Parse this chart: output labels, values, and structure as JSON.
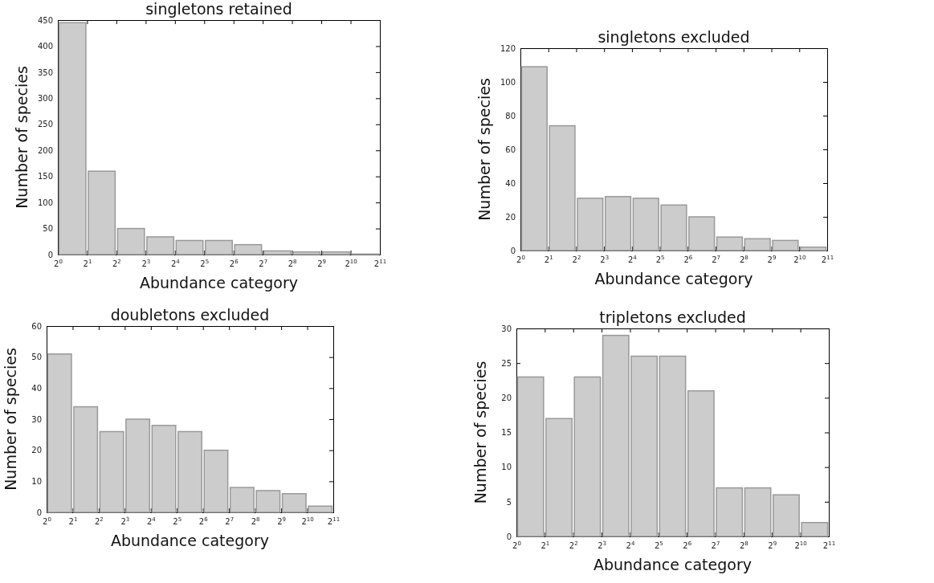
{
  "chart_data": [
    {
      "type": "histogram",
      "title": "singletons retained",
      "xlabel": "Abundance category",
      "ylabel": "Number of species",
      "log": "x",
      "color": "#cccccc",
      "grid": false,
      "bins": [
        1,
        2,
        4,
        8,
        16,
        32,
        64,
        128,
        256,
        512,
        1024,
        2048
      ],
      "values": [
        445,
        160,
        50,
        34,
        27,
        27,
        19,
        7,
        5,
        5,
        1
      ],
      "xlim": [
        1,
        2048
      ],
      "ylim": [
        0,
        450
      ],
      "xticks": [
        {
          "value": 1,
          "label": "2$^{0}$"
        },
        {
          "value": 2,
          "label": "2$^{1}$"
        },
        {
          "value": 4,
          "label": "2$^{2}$"
        },
        {
          "value": 8,
          "label": "2$^{3}$"
        },
        {
          "value": 16,
          "label": "2$^{4}$"
        },
        {
          "value": 32,
          "label": "2$^{5}$"
        },
        {
          "value": 64,
          "label": "2$^{6}$"
        },
        {
          "value": 128,
          "label": "2$^{7}$"
        },
        {
          "value": 256,
          "label": "2$^{8}$"
        },
        {
          "value": 512,
          "label": "2$^{9}$"
        },
        {
          "value": 1024,
          "label": "2$^{10}$"
        },
        {
          "value": 2048,
          "label": "2$^{11}$"
        }
      ],
      "yticks": [
        0,
        50,
        100,
        150,
        200,
        250,
        300,
        350,
        400,
        450
      ]
    },
    {
      "type": "histogram",
      "title": "singletons excluded",
      "xlabel": "Abundance category",
      "ylabel": "Number of species",
      "log": "x",
      "color": "#cccccc",
      "grid": false,
      "bins": [
        1,
        2,
        4,
        8,
        16,
        32,
        64,
        128,
        256,
        512,
        1024,
        2048
      ],
      "values": [
        109,
        74,
        31,
        32,
        31,
        27,
        20,
        8,
        7,
        6,
        2
      ],
      "xlim": [
        1,
        2048
      ],
      "ylim": [
        0,
        120
      ],
      "xticks": [
        {
          "value": 1,
          "label": "2$^{0}$"
        },
        {
          "value": 2,
          "label": "2$^{1}$"
        },
        {
          "value": 4,
          "label": "2$^{2}$"
        },
        {
          "value": 8,
          "label": "2$^{3}$"
        },
        {
          "value": 16,
          "label": "2$^{4}$"
        },
        {
          "value": 32,
          "label": "2$^{5}$"
        },
        {
          "value": 64,
          "label": "2$^{6}$"
        },
        {
          "value": 128,
          "label": "2$^{7}$"
        },
        {
          "value": 256,
          "label": "2$^{8}$"
        },
        {
          "value": 512,
          "label": "2$^{9}$"
        },
        {
          "value": 1024,
          "label": "2$^{10}$"
        },
        {
          "value": 2048,
          "label": "2$^{11}$"
        }
      ],
      "yticks": [
        0,
        20,
        40,
        60,
        80,
        100,
        120
      ]
    },
    {
      "type": "histogram",
      "title": "doubletons excluded",
      "xlabel": "Abundance category",
      "ylabel": "Number of species",
      "log": "x",
      "color": "#cccccc",
      "grid": false,
      "bins": [
        1,
        2,
        4,
        8,
        16,
        32,
        64,
        128,
        256,
        512,
        1024,
        2048
      ],
      "values": [
        51,
        34,
        26,
        30,
        28,
        26,
        20,
        8,
        7,
        6,
        2
      ],
      "xlim": [
        1,
        2048
      ],
      "ylim": [
        0,
        60
      ],
      "xticks": [
        {
          "value": 1,
          "label": "2$^{0}$"
        },
        {
          "value": 2,
          "label": "2$^{1}$"
        },
        {
          "value": 4,
          "label": "2$^{2}$"
        },
        {
          "value": 8,
          "label": "2$^{3}$"
        },
        {
          "value": 16,
          "label": "2$^{4}$"
        },
        {
          "value": 32,
          "label": "2$^{5}$"
        },
        {
          "value": 64,
          "label": "2$^{6}$"
        },
        {
          "value": 128,
          "label": "2$^{7}$"
        },
        {
          "value": 256,
          "label": "2$^{8}$"
        },
        {
          "value": 512,
          "label": "2$^{9}$"
        },
        {
          "value": 1024,
          "label": "2$^{10}$"
        },
        {
          "value": 2048,
          "label": "2$^{11}$"
        }
      ],
      "yticks": [
        0,
        10,
        20,
        30,
        40,
        50,
        60
      ]
    },
    {
      "type": "histogram",
      "title": "tripletons excluded",
      "xlabel": "Abundance category",
      "ylabel": "Number of species",
      "log": "x",
      "color": "#cccccc",
      "grid": false,
      "bins": [
        1,
        2,
        4,
        8,
        16,
        32,
        64,
        128,
        256,
        512,
        1024,
        2048
      ],
      "values": [
        23,
        17,
        23,
        29,
        26,
        26,
        21,
        7,
        7,
        6,
        2
      ],
      "xlim": [
        1,
        2048
      ],
      "ylim": [
        0,
        30
      ],
      "xticks": [
        {
          "value": 1,
          "label": "2$^{0}$"
        },
        {
          "value": 2,
          "label": "2$^{1}$"
        },
        {
          "value": 4,
          "label": "2$^{2}$"
        },
        {
          "value": 8,
          "label": "2$^{3}$"
        },
        {
          "value": 16,
          "label": "2$^{4}$"
        },
        {
          "value": 32,
          "label": "2$^{5}$"
        },
        {
          "value": 64,
          "label": "2$^{6}$"
        },
        {
          "value": 128,
          "label": "2$^{7}$"
        },
        {
          "value": 256,
          "label": "2$^{8}$"
        },
        {
          "value": 512,
          "label": "2$^{9}$"
        },
        {
          "value": 1024,
          "label": "2$^{10}$"
        },
        {
          "value": 2048,
          "label": "2$^{11}$"
        }
      ],
      "yticks": [
        0,
        5,
        10,
        15,
        20,
        25,
        30
      ]
    }
  ]
}
